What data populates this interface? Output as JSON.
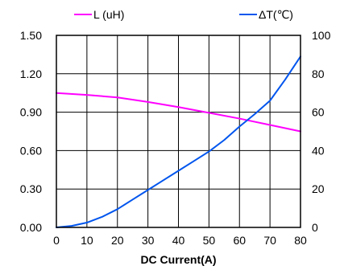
{
  "chart_data": {
    "type": "line",
    "xlabel": "DC Current(A)",
    "x_ticks": [
      "0",
      "10",
      "20",
      "30",
      "40",
      "50",
      "60",
      "70",
      "80"
    ],
    "xlim": [
      0,
      80
    ],
    "y_left_ticks": [
      "0.00",
      "0.30",
      "0.60",
      "0.90",
      "1.20",
      "1.50"
    ],
    "y_left_lim": [
      0,
      1.5
    ],
    "y_right_ticks": [
      "0",
      "20",
      "40",
      "60",
      "80",
      "100"
    ],
    "y_right_lim": [
      0,
      100
    ],
    "grid": true,
    "legend_position": "top",
    "series": [
      {
        "name": "L (uH)",
        "axis": "left",
        "color": "#ff00ff",
        "x": [
          0,
          10,
          20,
          30,
          40,
          50,
          60,
          70,
          80
        ],
        "y": [
          1.05,
          1.035,
          1.015,
          0.98,
          0.94,
          0.895,
          0.85,
          0.8,
          0.75
        ]
      },
      {
        "name": "ΔT(℃)",
        "axis": "right",
        "color": "#0055ee",
        "x": [
          0,
          5,
          10,
          15,
          20,
          25,
          30,
          35,
          40,
          45,
          50,
          55,
          60,
          65,
          70,
          75,
          80
        ],
        "y": [
          0,
          0.8,
          2.5,
          5.5,
          9.5,
          14.5,
          19.5,
          24.5,
          29.5,
          34.5,
          39.5,
          45.5,
          52.5,
          59,
          66,
          77,
          89
        ]
      }
    ]
  }
}
